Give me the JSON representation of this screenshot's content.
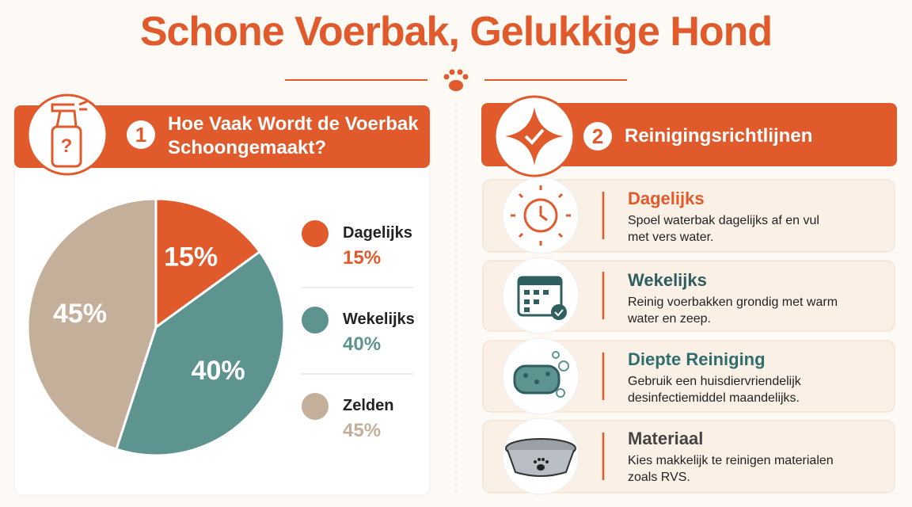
{
  "title": "Schone Voerbak, Gelukkige Hond",
  "sections": [
    {
      "number": "1",
      "title": "Hoe Vaak Wordt de Voerbak Schoongemaakt?"
    },
    {
      "number": "2",
      "title": "Reinigingsrichtlijnen"
    }
  ],
  "chart_data": {
    "type": "pie",
    "categories": [
      "Dagelijks",
      "Wekelijks",
      "Zelden"
    ],
    "values": [
      15,
      40,
      45
    ],
    "value_labels": [
      "15%",
      "40%",
      "45%"
    ],
    "colors": [
      "#e05a2b",
      "#5e9490",
      "#c4b09a"
    ]
  },
  "guidelines": [
    {
      "title": "Dagelijks",
      "text": "Spoel waterbak dagelijks af en vul met vers water."
    },
    {
      "title": "Wekelijks",
      "text": "Reinig voerbakken grondig met warm water en zeep."
    },
    {
      "title": "Diepte Reiniging",
      "text": "Gebruik een huisdiervriendelijk desinfectiemiddel maandelijks."
    },
    {
      "title": "Materiaal",
      "text": "Kies makkelijk te reinigen materialen zoals RVS."
    }
  ]
}
